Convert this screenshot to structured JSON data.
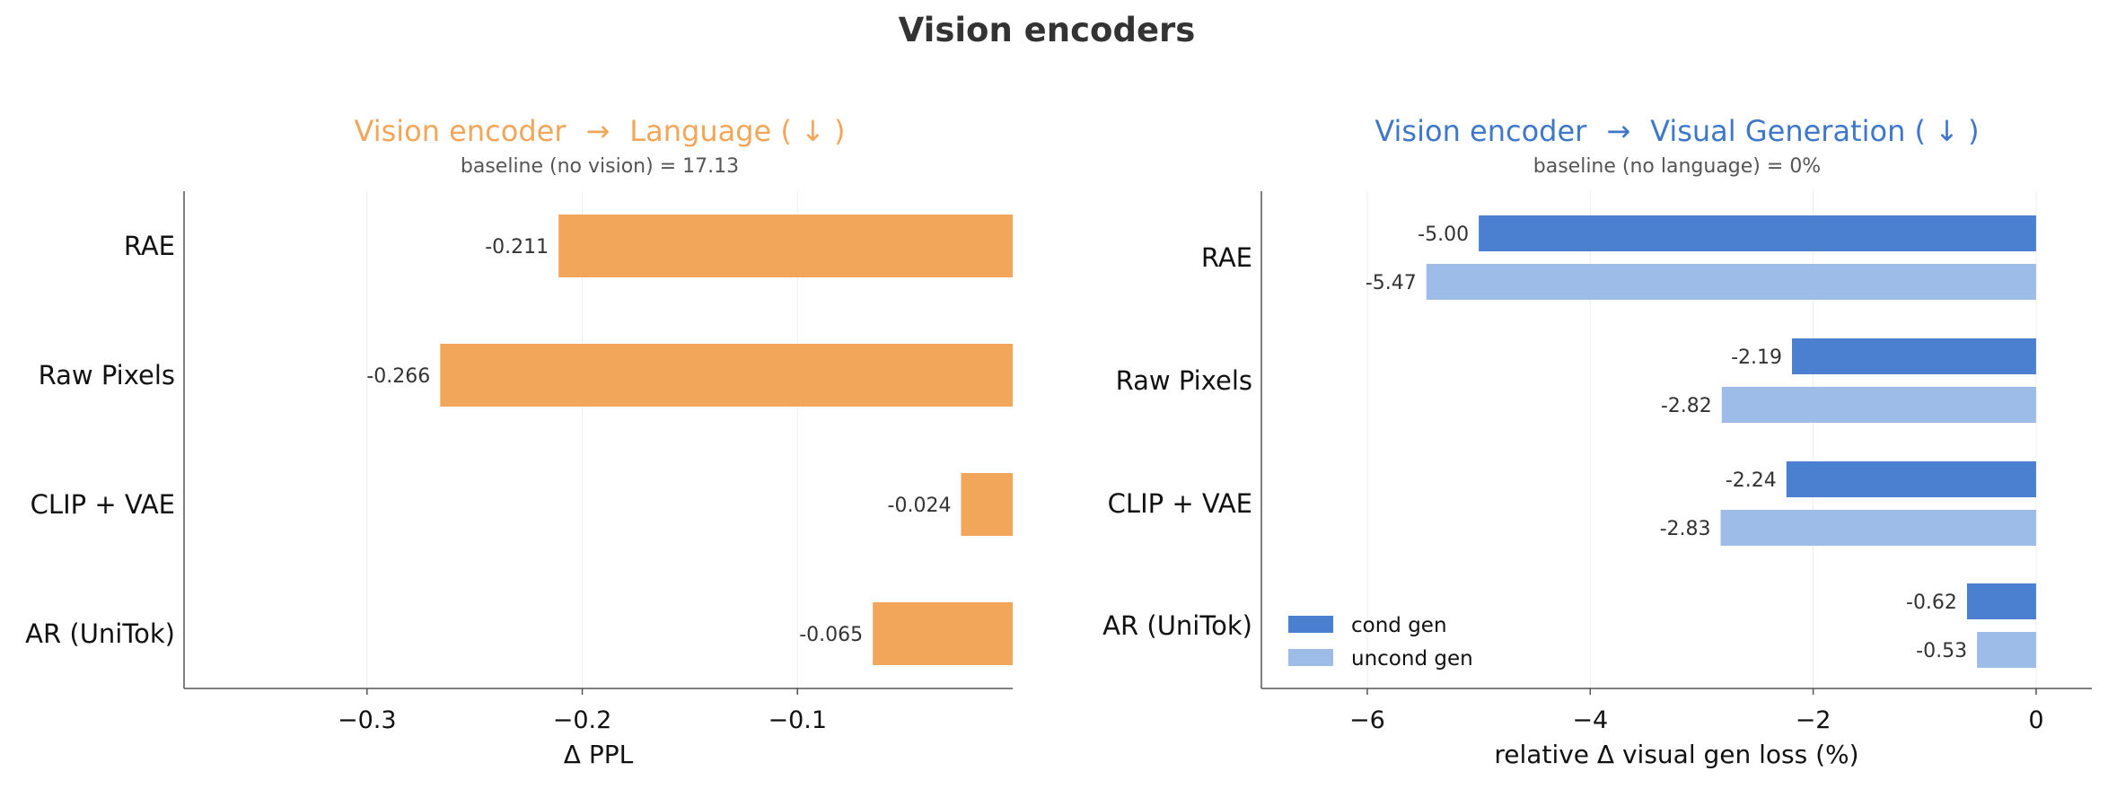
{
  "figure": {
    "title": "Vision encoders"
  },
  "chart_data": [
    {
      "type": "bar",
      "orientation": "horizontal",
      "title_left": "Vision encoder",
      "title_arrow": "→",
      "title_right": "Language ( ↓ )",
      "subtitle": "baseline (no vision) = 17.13",
      "title_color": "#f2a65a",
      "xlabel": "Δ PPL",
      "xlim": [
        -0.385,
        0
      ],
      "xticks": [
        -0.3,
        -0.2,
        -0.1
      ],
      "xtick_labels": [
        "−0.3",
        "−0.2",
        "−0.1"
      ],
      "categories": [
        "RAE",
        "Raw Pixels",
        "CLIP + VAE",
        "AR (UniTok)"
      ],
      "values": [
        -0.211,
        -0.266,
        -0.024,
        -0.065
      ],
      "value_labels": [
        "-0.211",
        "-0.266",
        "-0.024",
        "-0.065"
      ],
      "bar_color": "#f2a65a",
      "grid": "vertical faint"
    },
    {
      "type": "bar",
      "orientation": "horizontal",
      "title_left": "Vision encoder",
      "title_arrow": "→",
      "title_right": "Visual Generation ( ↓ )",
      "subtitle": "baseline (no language) = 0%",
      "title_color": "#3f78c9",
      "xlabel": "relative Δ visual gen loss (%)",
      "xlim": [
        -6.95,
        0.5
      ],
      "xticks": [
        -6,
        -4,
        -2,
        0
      ],
      "xtick_labels": [
        "−6",
        "−4",
        "−2",
        "0"
      ],
      "categories": [
        "RAE",
        "Raw Pixels",
        "CLIP + VAE",
        "AR (UniTok)"
      ],
      "series": [
        {
          "name": "cond gen",
          "color": "#4a80cf",
          "values": [
            -5.0,
            -2.19,
            -2.24,
            -0.62
          ],
          "value_labels": [
            "-5.00",
            "-2.19",
            "-2.24",
            "-0.62"
          ]
        },
        {
          "name": "uncond gen",
          "color": "#9dbde8",
          "values": [
            -5.47,
            -2.82,
            -2.83,
            -0.53
          ],
          "value_labels": [
            "-5.47",
            "-2.82",
            "-2.83",
            "-0.53"
          ]
        }
      ],
      "legend": "lower-left",
      "grid": "vertical faint"
    }
  ]
}
